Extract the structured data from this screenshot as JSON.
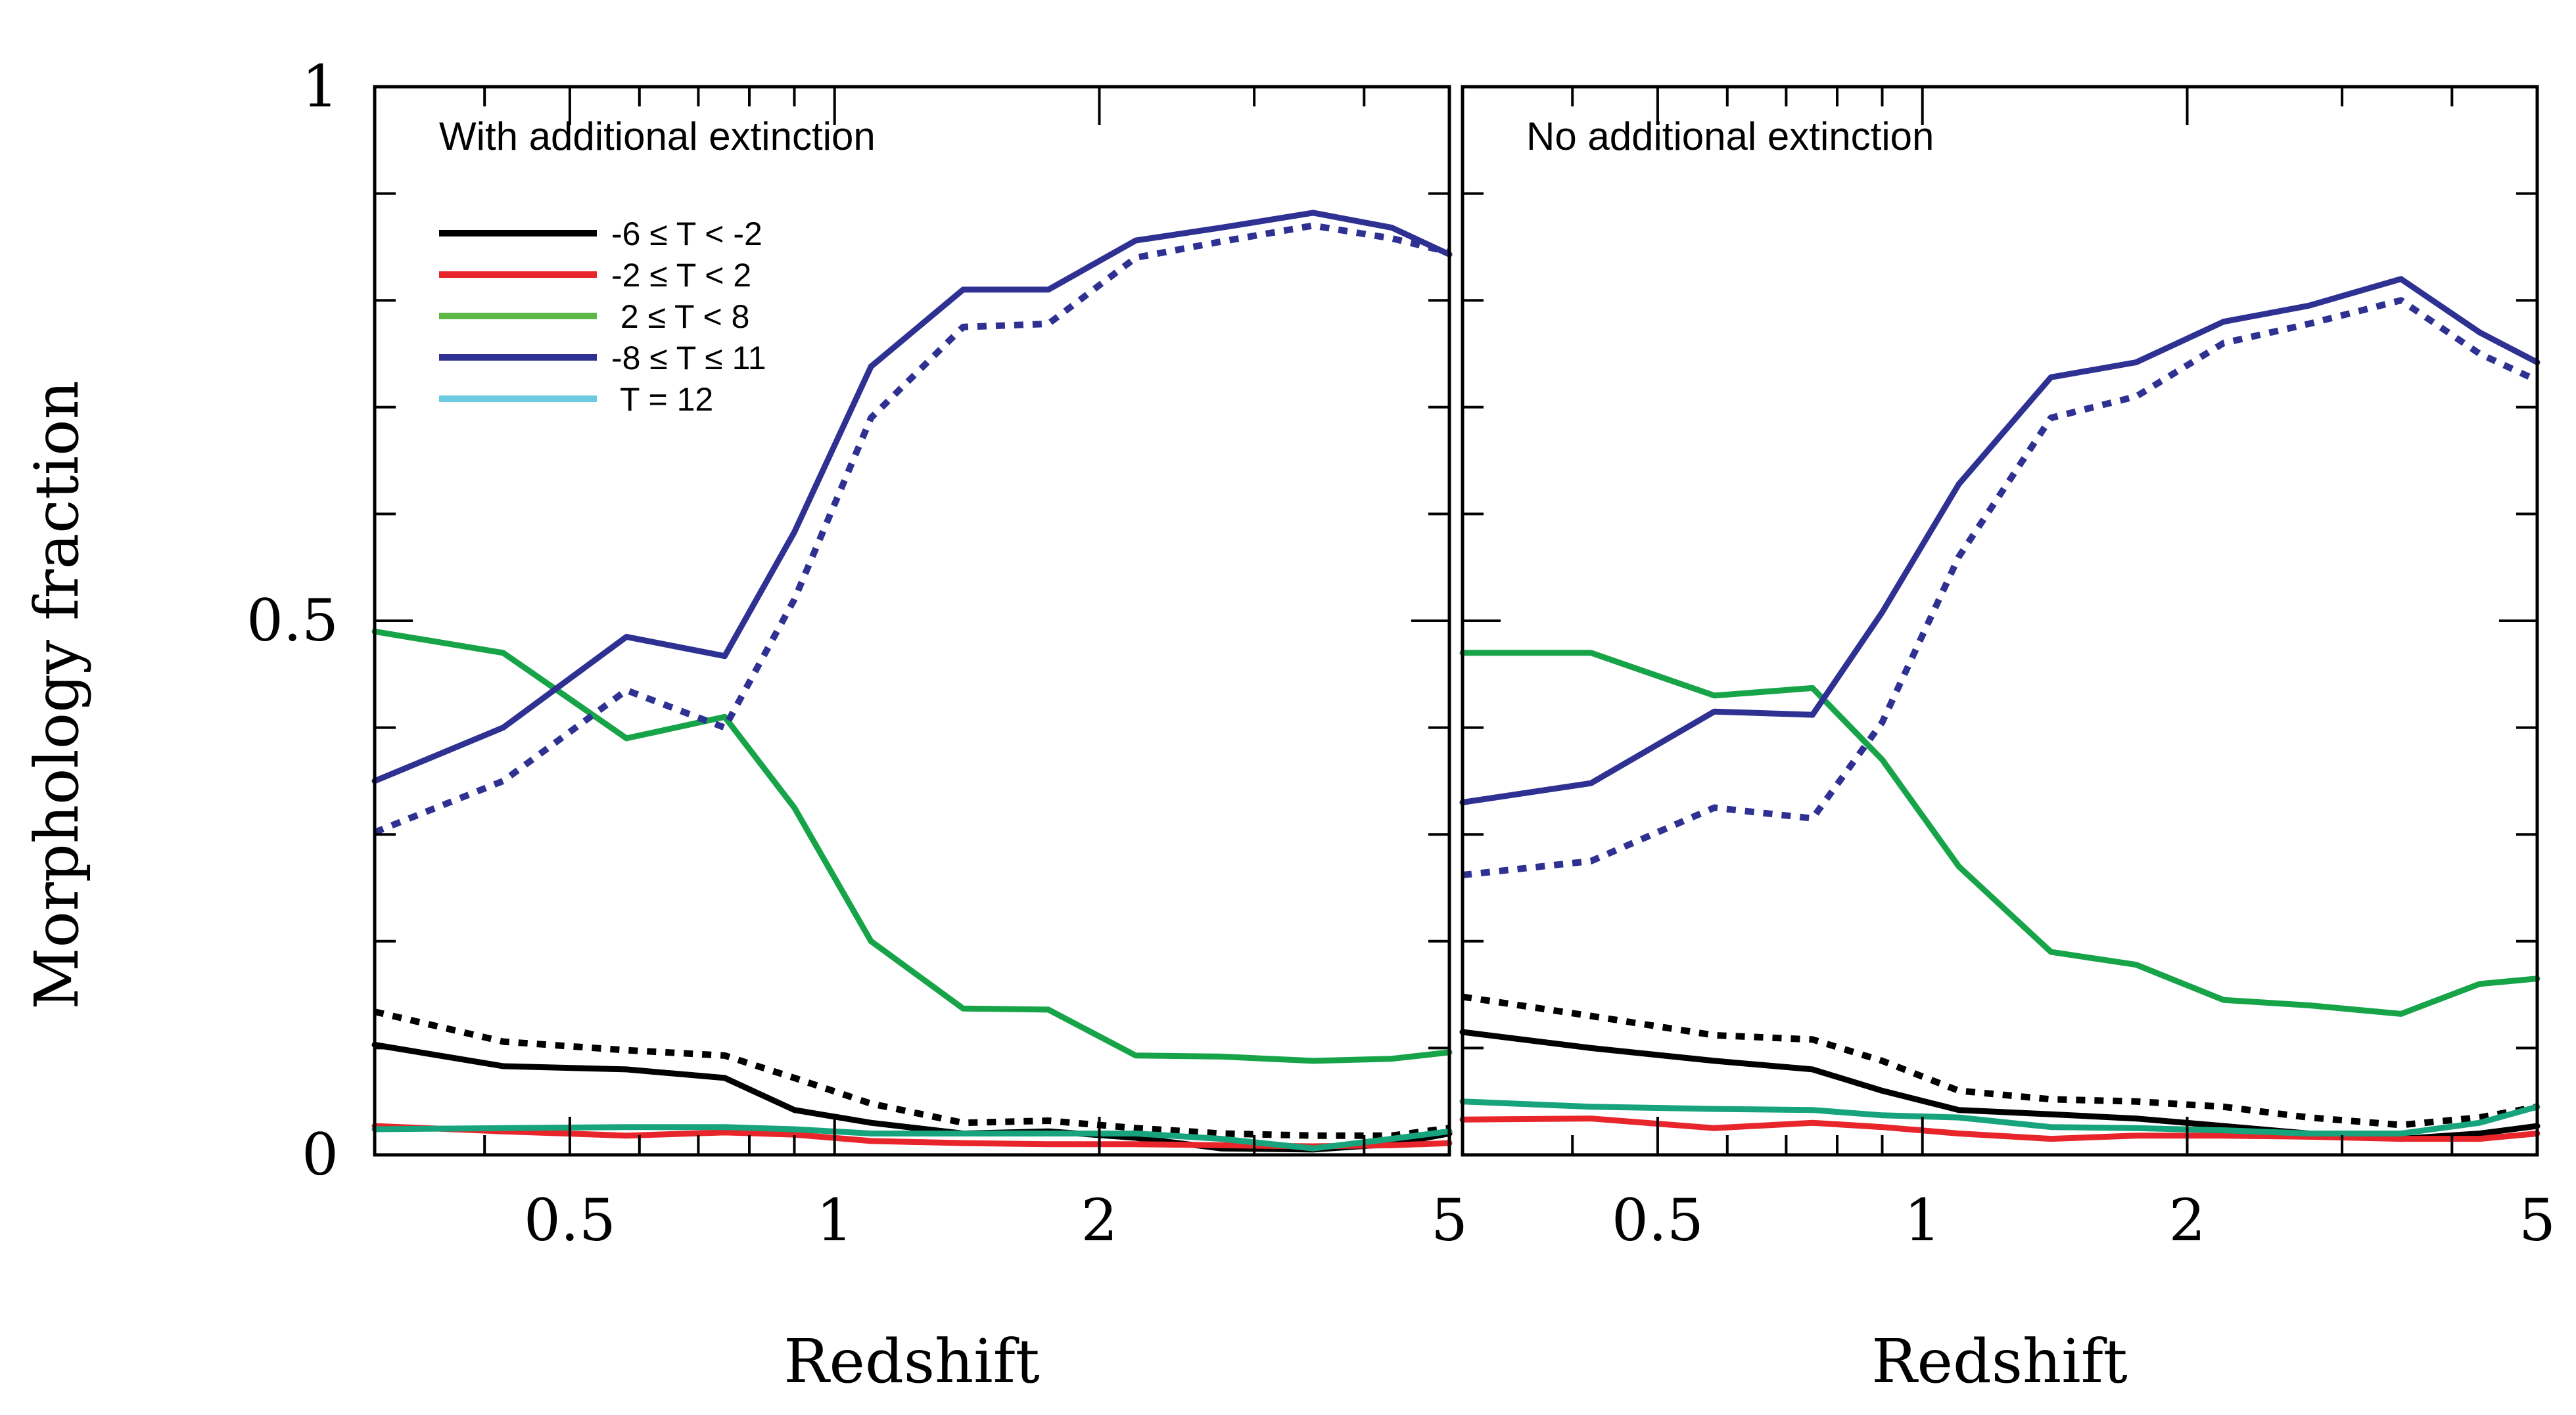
{
  "chart_data": [
    {
      "type": "line",
      "annotation": "With additional extinction",
      "xlabel": "Redshift",
      "ylabel": "Morphology fraction",
      "x_scale": "log",
      "xlim": [
        0.3,
        5
      ],
      "ylim": [
        0,
        1
      ],
      "x_ticks": [
        0.5,
        1,
        2,
        5
      ],
      "x_tick_labels": [
        "0.5",
        "1",
        "2",
        "5"
      ],
      "y_ticks": [
        0,
        0.5,
        1
      ],
      "y_tick_labels": [
        "0",
        "0.5",
        "1"
      ],
      "legend": {
        "placement": "top-left",
        "entries": [
          {
            "label": "-6 ≤ T < -2",
            "color": "#000000"
          },
          {
            "label": "-2 ≤ T < 2",
            "color": "#e8252a"
          },
          {
            "label": " 2 ≤ T < 8",
            "color": "#5cb946"
          },
          {
            "label": "-8 ≤ T ≤ 11",
            "color": "#2e3192"
          },
          {
            "label": " T = 12",
            "color": "#6ccbe0"
          }
        ]
      },
      "x": [
        0.3,
        0.42,
        0.58,
        0.75,
        0.9,
        1.1,
        1.4,
        1.75,
        2.2,
        2.75,
        3.5,
        4.3,
        5.0
      ],
      "series": [
        {
          "key": "black-solid",
          "color": "#000000",
          "style": "solid",
          "values": [
            0.103,
            0.083,
            0.08,
            0.072,
            0.042,
            0.03,
            0.02,
            0.022,
            0.016,
            0.006,
            0.005,
            0.01,
            0.02
          ]
        },
        {
          "key": "black-dotted",
          "color": "#000000",
          "style": "dotted",
          "values": [
            0.134,
            0.106,
            0.098,
            0.093,
            0.072,
            0.048,
            0.03,
            0.032,
            0.025,
            0.02,
            0.018,
            0.018,
            0.025
          ]
        },
        {
          "key": "red-solid",
          "color": "#e8252a",
          "style": "solid",
          "values": [
            0.027,
            0.022,
            0.018,
            0.021,
            0.019,
            0.013,
            0.011,
            0.01,
            0.01,
            0.009,
            0.008,
            0.009,
            0.011
          ]
        },
        {
          "key": "teal-solid",
          "color": "#17a47c",
          "style": "solid",
          "values": [
            0.024,
            0.025,
            0.026,
            0.026,
            0.024,
            0.02,
            0.02,
            0.02,
            0.02,
            0.015,
            0.006,
            0.015,
            0.022
          ]
        },
        {
          "key": "green-solid",
          "color": "#17a448",
          "style": "solid",
          "values": [
            0.49,
            0.47,
            0.39,
            0.41,
            0.325,
            0.2,
            0.137,
            0.136,
            0.093,
            0.092,
            0.088,
            0.09,
            0.096
          ]
        },
        {
          "key": "blue-solid",
          "color": "#2e3192",
          "style": "solid",
          "values": [
            0.35,
            0.4,
            0.485,
            0.467,
            0.583,
            0.738,
            0.81,
            0.81,
            0.856,
            0.868,
            0.882,
            0.868,
            0.843
          ]
        },
        {
          "key": "blue-dotted",
          "color": "#2e3192",
          "style": "dotted",
          "values": [
            0.302,
            0.35,
            0.435,
            0.4,
            0.52,
            0.69,
            0.775,
            0.778,
            0.84,
            0.855,
            0.87,
            0.858,
            0.845
          ]
        }
      ]
    },
    {
      "type": "line",
      "annotation": "No additional extinction",
      "xlabel": "Redshift",
      "x_scale": "log",
      "xlim": [
        0.3,
        5
      ],
      "ylim": [
        0,
        1
      ],
      "x_ticks": [
        0.5,
        1,
        2,
        5
      ],
      "x_tick_labels": [
        "0.5",
        "1",
        "2",
        "5"
      ],
      "x": [
        0.3,
        0.42,
        0.58,
        0.75,
        0.9,
        1.1,
        1.4,
        1.75,
        2.2,
        2.75,
        3.5,
        4.3,
        5.0
      ],
      "series": [
        {
          "key": "black-solid",
          "color": "#000000",
          "style": "solid",
          "values": [
            0.115,
            0.1,
            0.088,
            0.08,
            0.06,
            0.042,
            0.038,
            0.034,
            0.027,
            0.02,
            0.015,
            0.02,
            0.027
          ]
        },
        {
          "key": "black-dotted",
          "color": "#000000",
          "style": "dotted",
          "values": [
            0.148,
            0.13,
            0.112,
            0.108,
            0.088,
            0.06,
            0.052,
            0.05,
            0.045,
            0.035,
            0.028,
            0.035,
            0.045
          ]
        },
        {
          "key": "red-solid",
          "color": "#e8252a",
          "style": "solid",
          "values": [
            0.033,
            0.034,
            0.025,
            0.03,
            0.026,
            0.02,
            0.015,
            0.018,
            0.018,
            0.017,
            0.015,
            0.015,
            0.02
          ]
        },
        {
          "key": "teal-solid",
          "color": "#17a47c",
          "style": "solid",
          "values": [
            0.05,
            0.045,
            0.043,
            0.042,
            0.037,
            0.035,
            0.026,
            0.025,
            0.023,
            0.02,
            0.02,
            0.03,
            0.045
          ]
        },
        {
          "key": "green-solid",
          "color": "#17a448",
          "style": "solid",
          "values": [
            0.47,
            0.47,
            0.43,
            0.437,
            0.37,
            0.27,
            0.19,
            0.178,
            0.145,
            0.14,
            0.132,
            0.16,
            0.165
          ]
        },
        {
          "key": "blue-solid",
          "color": "#2e3192",
          "style": "solid",
          "values": [
            0.33,
            0.348,
            0.415,
            0.412,
            0.508,
            0.628,
            0.728,
            0.742,
            0.78,
            0.795,
            0.82,
            0.77,
            0.742
          ]
        },
        {
          "key": "blue-dotted",
          "color": "#2e3192",
          "style": "dotted",
          "values": [
            0.262,
            0.275,
            0.325,
            0.315,
            0.405,
            0.56,
            0.69,
            0.71,
            0.76,
            0.778,
            0.8,
            0.75,
            0.725
          ]
        }
      ]
    }
  ]
}
